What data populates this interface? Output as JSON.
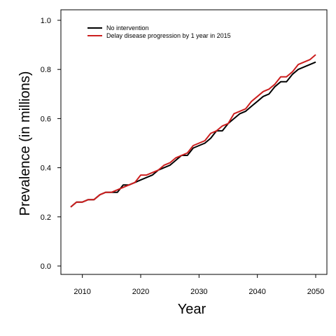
{
  "chart_data": {
    "type": "line",
    "xlabel": "Year",
    "ylabel": "Prevalence (in millions)",
    "xlim": [
      2008,
      2050
    ],
    "ylim": [
      0,
      1.0
    ],
    "xticks": [
      2010,
      2020,
      2030,
      2040,
      2050
    ],
    "yticks": [
      "0.0",
      "0.2",
      "0.4",
      "0.6",
      "0.8",
      "1.0"
    ],
    "grid": false,
    "legend_position": "top-left",
    "x": [
      2008,
      2009,
      2010,
      2011,
      2012,
      2013,
      2014,
      2015,
      2016,
      2017,
      2018,
      2019,
      2020,
      2021,
      2022,
      2023,
      2024,
      2025,
      2026,
      2027,
      2028,
      2029,
      2030,
      2031,
      2032,
      2033,
      2034,
      2035,
      2036,
      2037,
      2038,
      2039,
      2040,
      2041,
      2042,
      2043,
      2044,
      2045,
      2046,
      2047,
      2048,
      2049,
      2050
    ],
    "series": [
      {
        "name": "No intervention",
        "color": "#000000",
        "values": [
          0.24,
          0.26,
          0.26,
          0.27,
          0.27,
          0.29,
          0.3,
          0.3,
          0.3,
          0.33,
          0.33,
          0.34,
          0.35,
          0.36,
          0.37,
          0.39,
          0.4,
          0.41,
          0.43,
          0.45,
          0.45,
          0.48,
          0.49,
          0.5,
          0.52,
          0.55,
          0.55,
          0.58,
          0.6,
          0.62,
          0.63,
          0.65,
          0.67,
          0.69,
          0.7,
          0.73,
          0.75,
          0.75,
          0.78,
          0.8,
          0.81,
          0.82,
          0.83
        ]
      },
      {
        "name": "Delay disease progression by 1 year in 2015",
        "color": "#cc1f1f",
        "values": [
          0.24,
          0.26,
          0.26,
          0.27,
          0.27,
          0.29,
          0.3,
          0.3,
          0.31,
          0.32,
          0.33,
          0.34,
          0.37,
          0.37,
          0.38,
          0.39,
          0.41,
          0.42,
          0.44,
          0.45,
          0.46,
          0.49,
          0.5,
          0.51,
          0.54,
          0.55,
          0.57,
          0.58,
          0.62,
          0.63,
          0.64,
          0.67,
          0.69,
          0.71,
          0.72,
          0.74,
          0.77,
          0.77,
          0.79,
          0.82,
          0.83,
          0.84,
          0.86
        ]
      }
    ]
  }
}
